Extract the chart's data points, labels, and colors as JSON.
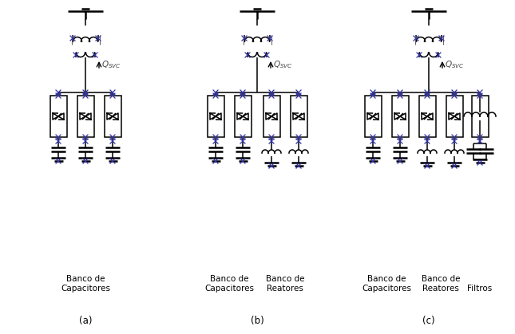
{
  "bg_color": "#ffffff",
  "line_color": "#000000",
  "blue_color": "#3333aa",
  "fig_width": 6.45,
  "fig_height": 4.19,
  "dpi": 100,
  "labels": {
    "a_label": "(a)",
    "b_label": "(b)",
    "c_label": "(c)",
    "banco_cap": "Banco de\nCapacitores",
    "banco_reat": "Banco de\nReatores",
    "filtros": "Filtros",
    "qsvc": "$Q_{SVC}$"
  },
  "font_size_label": 7.5,
  "font_size_abc": 8.5
}
